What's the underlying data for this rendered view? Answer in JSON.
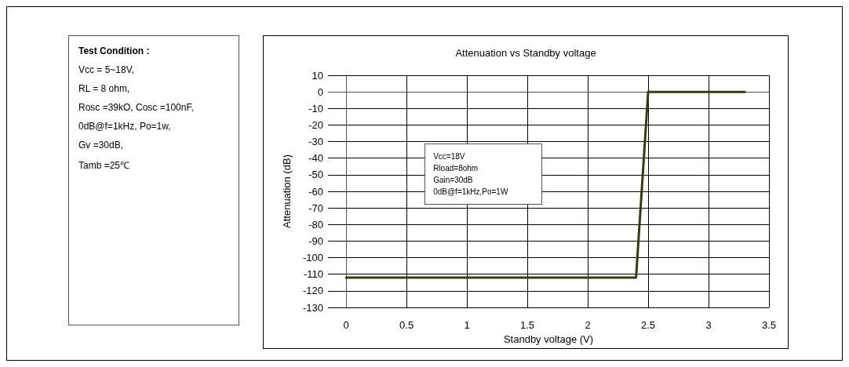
{
  "chart_data": [
    {
      "type": "other",
      "annotations": [
        "Test Condition :",
        "Vcc = 5~18V,",
        "RL = 8 ohm,",
        "Rosc =39kO, Cosc =100nF,",
        "0dB@f=1kHz, Po=1w,",
        "Gv =30dB,",
        "Tamb =25℃"
      ]
    },
    {
      "type": "line",
      "title": "Attenuation vs Standby voltage",
      "xlabel": "Standby voltage (V)",
      "ylabel": "Attenuation (dB)",
      "x": [
        0,
        2.4,
        2.5,
        3.3
      ],
      "series": [
        {
          "color": "#3a3a10",
          "values": [
            -112,
            -112,
            0,
            0
          ]
        }
      ],
      "xlim": [
        -0.15,
        3.5
      ],
      "xticks": [
        0,
        0.5,
        1,
        1.5,
        2,
        2.5,
        3,
        3.5
      ],
      "ylim": [
        -130,
        10
      ],
      "yticks": [
        10,
        0,
        -10,
        -20,
        -30,
        -40,
        -50,
        -60,
        -70,
        -80,
        -90,
        -100,
        -110,
        -120,
        -130
      ],
      "grid": true,
      "marker": "none",
      "line_style": "solid",
      "annotations": [
        "Vcc=18V",
        "Rload=8ohm",
        "Gain=30dB",
        "0dB@f=1kHz,Po=1W"
      ]
    }
  ]
}
